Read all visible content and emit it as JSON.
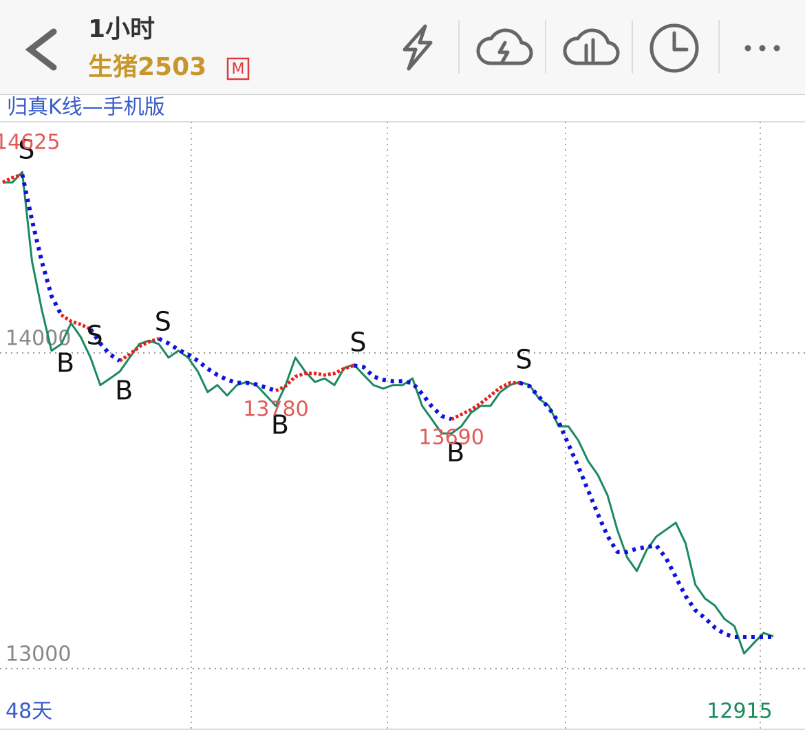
{
  "header": {
    "title": "1小时",
    "symbol": "生猪2503",
    "badge": "M"
  },
  "indicator": "归真K线—手机版",
  "period": "48天",
  "chart_data": {
    "type": "line",
    "categories": [
      null,
      null,
      null,
      null,
      null,
      null,
      null,
      null,
      null,
      null,
      null,
      null,
      null,
      null,
      null,
      null,
      null,
      null,
      null,
      null,
      null,
      null,
      null,
      null,
      null,
      null,
      null,
      null,
      null,
      null,
      null,
      null,
      null,
      null,
      null,
      null,
      null,
      null,
      null,
      null,
      null,
      null,
      null,
      null,
      null,
      null,
      null,
      null,
      null,
      null,
      null,
      null,
      null,
      null,
      null,
      null,
      null,
      null,
      null,
      null,
      null,
      null,
      null,
      null,
      null,
      null,
      null,
      null,
      null,
      null,
      null,
      null,
      null,
      null,
      null,
      null,
      null,
      null,
      null,
      null
    ],
    "series": [
      {
        "color": "#1b8a5e",
        "values": [
          14540,
          14540,
          14573,
          14290,
          14137,
          14007,
          14028,
          14094,
          14050,
          13985,
          13898,
          13919,
          13941,
          13985,
          14028,
          14039,
          14028,
          13985,
          14007,
          13985,
          13941,
          13876,
          13898,
          13865,
          13898,
          13908,
          13898,
          13865,
          13832,
          13898,
          13985,
          13941,
          13908,
          13919,
          13898,
          13952,
          13963,
          13930,
          13898,
          13887,
          13898,
          13898,
          13919,
          13832,
          13789,
          13745,
          13745,
          13767,
          13810,
          13832,
          13832,
          13876,
          13898,
          13908,
          13898,
          13854,
          13832,
          13767,
          13767,
          13723,
          13658,
          13614,
          13549,
          13440,
          13353,
          13309,
          13375,
          13418,
          13440,
          13462,
          13397,
          13266,
          13222,
          13200,
          13157,
          13135,
          13048,
          13081,
          13113,
          13102
        ]
      },
      {
        "color": "#e8201e",
        "values": [
          14540,
          14555,
          14565,
          null,
          null,
          null,
          14120,
          14100,
          14090,
          14075,
          null,
          null,
          13975,
          13995,
          14020,
          14035,
          14045,
          null,
          null,
          null,
          null,
          null,
          null,
          null,
          null,
          null,
          null,
          null,
          13880,
          13895,
          13925,
          13935,
          13935,
          13930,
          13935,
          13950,
          13960,
          null,
          null,
          null,
          null,
          null,
          null,
          null,
          null,
          null,
          13790,
          13805,
          13820,
          13840,
          13865,
          13890,
          13905,
          13905,
          null,
          null,
          null,
          null,
          null,
          null,
          null,
          null,
          null,
          null,
          null,
          null,
          null,
          null,
          null,
          null,
          null,
          null,
          null,
          null,
          null,
          null,
          null,
          null,
          null,
          null
        ]
      },
      {
        "color": "#1010e0",
        "values": [
          null,
          null,
          14565,
          14420,
          14290,
          14180,
          14120,
          null,
          null,
          14075,
          14030,
          13995,
          13975,
          null,
          null,
          null,
          14045,
          14030,
          14010,
          13995,
          13975,
          13950,
          13930,
          13915,
          13905,
          13905,
          13900,
          13890,
          13880,
          null,
          null,
          null,
          null,
          null,
          null,
          null,
          13960,
          13955,
          13925,
          13915,
          13910,
          13910,
          13905,
          13870,
          13830,
          13800,
          13790,
          null,
          null,
          null,
          null,
          null,
          null,
          13905,
          13895,
          13860,
          13825,
          13780,
          13710,
          13640,
          13565,
          13490,
          13420,
          13370,
          13370,
          13380,
          13385,
          13390,
          13350,
          13290,
          13230,
          13185,
          13160,
          13130,
          13110,
          13100,
          13100,
          13100,
          13100,
          13100
        ]
      }
    ],
    "signals": [
      null,
      null,
      "S",
      null,
      null,
      null,
      "B",
      null,
      null,
      "S",
      null,
      null,
      "B",
      null,
      null,
      null,
      "S",
      null,
      null,
      null,
      null,
      null,
      null,
      null,
      null,
      null,
      null,
      null,
      "B",
      null,
      null,
      null,
      null,
      null,
      null,
      null,
      "S",
      null,
      null,
      null,
      null,
      null,
      null,
      null,
      null,
      null,
      "B",
      null,
      null,
      null,
      null,
      null,
      null,
      "S",
      null,
      null,
      null,
      null,
      null,
      null,
      null,
      null,
      null,
      null,
      null,
      null,
      null,
      null,
      null,
      null,
      null,
      null,
      null,
      null,
      null,
      null,
      null,
      null,
      null,
      null
    ],
    "extremes": [
      14625,
      null,
      null,
      null,
      null,
      null,
      null,
      null,
      null,
      null,
      null,
      null,
      null,
      null,
      null,
      null,
      null,
      null,
      null,
      null,
      null,
      null,
      null,
      null,
      null,
      null,
      null,
      null,
      13780,
      null,
      null,
      null,
      null,
      null,
      null,
      null,
      null,
      null,
      null,
      null,
      null,
      null,
      null,
      null,
      null,
      null,
      13690,
      null,
      null,
      null,
      null,
      null,
      null,
      null,
      null,
      null,
      null,
      null,
      null,
      null,
      null,
      null,
      null,
      null,
      null,
      null,
      null,
      null,
      null,
      null,
      null,
      null,
      null,
      null,
      null,
      null,
      null,
      null,
      12915,
      null
    ],
    "ylim": [
      12808,
      14732
    ],
    "yticks": [
      13000,
      14000
    ],
    "grid": true
  }
}
